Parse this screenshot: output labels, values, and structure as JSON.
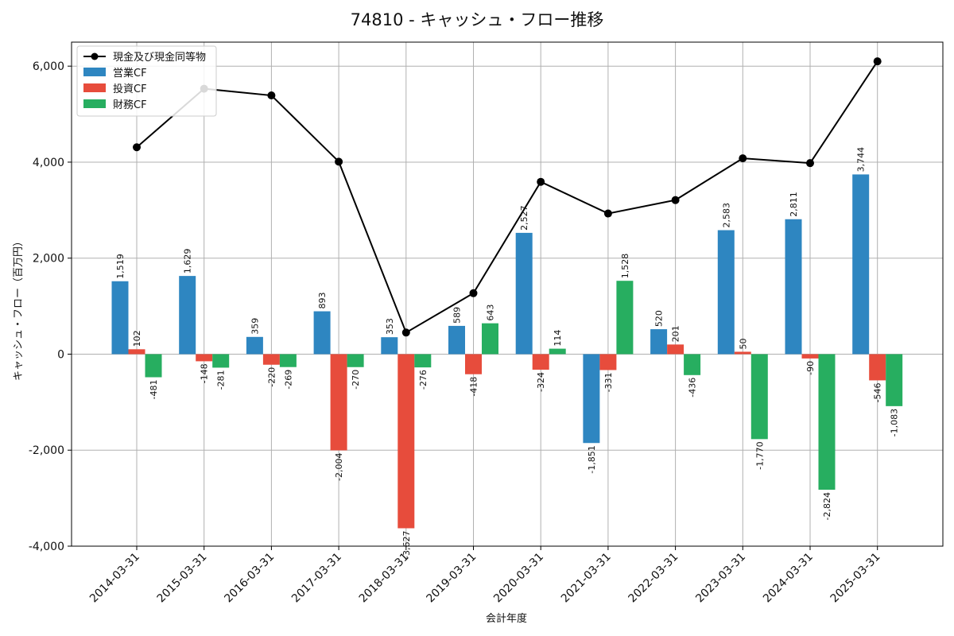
{
  "chart_data": {
    "type": "bar",
    "title": "74810 - キャッシュ・フロー推移",
    "xlabel": "会計年度",
    "ylabel": "キャッシュ・フロー（百万円）",
    "ylim": [
      -4000,
      6500
    ],
    "yticks": [
      -4000,
      -2000,
      0,
      2000,
      4000,
      6000
    ],
    "ytick_labels": [
      "-4,000",
      "-2,000",
      "0",
      "2,000",
      "4,000",
      "6,000"
    ],
    "grid": true,
    "legend_position": "top-left",
    "categories": [
      "2014-03-31",
      "2015-03-31",
      "2016-03-31",
      "2017-03-31",
      "2018-03-31",
      "2019-03-31",
      "2020-03-31",
      "2021-03-31",
      "2022-03-31",
      "2023-03-31",
      "2024-03-31",
      "2025-03-31"
    ],
    "line_series": {
      "name": "現金及び現金同等物",
      "color": "#000000",
      "values": [
        4310,
        5530,
        5390,
        4010,
        450,
        1270,
        3590,
        2930,
        3210,
        4080,
        3980,
        6100
      ]
    },
    "series": [
      {
        "name": "営業CF",
        "color": "#2e86c1",
        "values": [
          1519,
          1629,
          359,
          893,
          353,
          589,
          2527,
          -1851,
          520,
          2583,
          2811,
          3744
        ],
        "labels": [
          "1,519",
          "1,629",
          "359",
          "893",
          "353",
          "589",
          "2,527",
          "-1,851",
          "520",
          "2,583",
          "2,811",
          "3,744"
        ]
      },
      {
        "name": "投資CF",
        "color": "#e74c3c",
        "values": [
          102,
          -148,
          -220,
          -2004,
          -3627,
          -418,
          -324,
          -331,
          201,
          50,
          -90,
          -546
        ],
        "labels": [
          "102",
          "-148",
          "-220",
          "-2,004",
          "-3,627",
          "-418",
          "-324",
          "-331",
          "201",
          "50",
          "-90",
          "-546"
        ]
      },
      {
        "name": "財務CF",
        "color": "#27ae60",
        "values": [
          -481,
          -281,
          -269,
          -270,
          -276,
          643,
          114,
          1528,
          -436,
          -1770,
          -2824,
          -1083
        ],
        "labels": [
          "-481",
          "-281",
          "-269",
          "-270",
          "-276",
          "643",
          "114",
          "1,528",
          "-436",
          "-1,770",
          "-2,824",
          "-1,083"
        ]
      }
    ]
  }
}
